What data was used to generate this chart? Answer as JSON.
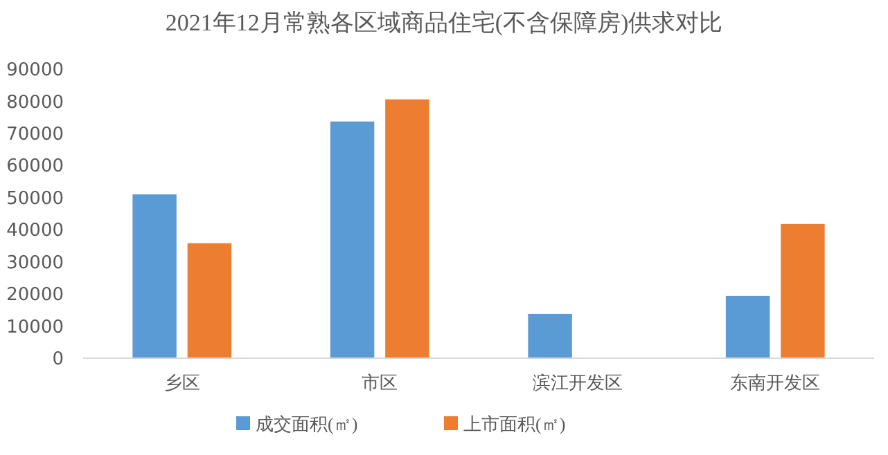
{
  "chart_data": {
    "type": "bar",
    "title": "2021年12月常熟各区域商品住宅(不含保障房)供求对比",
    "categories": [
      "乡区",
      "市区",
      "滨江开发区",
      "东南开发区"
    ],
    "series": [
      {
        "name": "成交面积(㎡)",
        "color": "#5b9bd5",
        "values": [
          51000,
          73700,
          13800,
          19400
        ]
      },
      {
        "name": "上市面积(㎡)",
        "color": "#ed7d31",
        "values": [
          35800,
          80600,
          0,
          41800
        ]
      }
    ],
    "ylim": [
      0,
      90000
    ],
    "yticks": [
      0,
      10000,
      20000,
      30000,
      40000,
      50000,
      60000,
      70000,
      80000,
      90000
    ],
    "grid": false,
    "legend": "bottom"
  }
}
